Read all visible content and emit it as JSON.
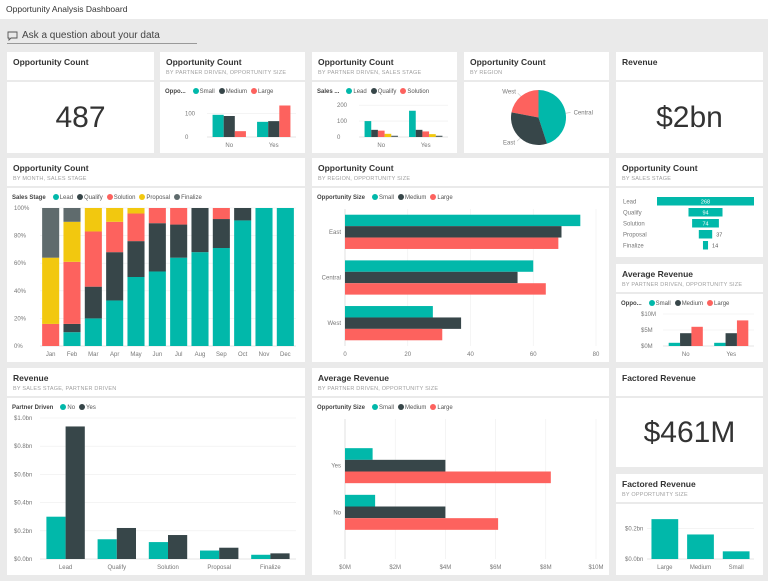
{
  "app_title": "Opportunity Analysis Dashboard",
  "qa": {
    "placeholder": "Ask a question about your data",
    "icon": "chat-bubble-icon"
  },
  "colors": {
    "small": "#01b8aa",
    "medium": "#374649",
    "large": "#fd625e",
    "lead": "#01b8aa",
    "qualify": "#374649",
    "solution": "#fd625e",
    "proposal": "#f2c80f",
    "finalize": "#5f6b6d"
  },
  "tiles": {
    "opp_count": {
      "title": "Opportunity Count",
      "value": "487"
    },
    "opp_partner_size": {
      "title": "Opportunity Count",
      "subtitle": "BY PARTNER DRIVEN, OPPORTUNITY SIZE",
      "chart": {
        "type": "bar",
        "legend_title": "Oppo...",
        "categories": [
          "No",
          "Yes"
        ],
        "series": [
          {
            "name": "Small",
            "color": "#01b8aa",
            "values": [
              95,
              65
            ]
          },
          {
            "name": "Medium",
            "color": "#374649",
            "values": [
              90,
              68
            ]
          },
          {
            "name": "Large",
            "color": "#fd625e",
            "values": [
              25,
              135
            ]
          }
        ],
        "ylim": [
          0,
          150
        ],
        "yticks": [
          0,
          100
        ],
        "ytick_labels": [
          "0",
          "100"
        ]
      }
    },
    "opp_partner_stage": {
      "title": "Opportunity Count",
      "subtitle": "BY PARTNER DRIVEN, SALES STAGE",
      "chart": {
        "type": "bar",
        "legend_title": "Sales ...",
        "legend_shown": 3,
        "categories": [
          "No",
          "Yes"
        ],
        "series": [
          {
            "name": "Lead",
            "color": "#01b8aa",
            "values": [
              100,
              165
            ]
          },
          {
            "name": "Qualify",
            "color": "#374649",
            "values": [
              45,
              45
            ]
          },
          {
            "name": "Solution",
            "color": "#fd625e",
            "values": [
              40,
              35
            ]
          },
          {
            "name": "Proposal",
            "color": "#f2c80f",
            "values": [
              20,
              18
            ]
          },
          {
            "name": "Finalize",
            "color": "#5f6b6d",
            "values": [
              8,
              8
            ]
          }
        ],
        "ylim": [
          0,
          220
        ],
        "yticks": [
          0,
          100,
          200
        ],
        "ytick_labels": [
          "0",
          "100",
          "200"
        ]
      }
    },
    "opp_region": {
      "title": "Opportunity Count",
      "subtitle": "BY REGION",
      "chart": {
        "type": "pie",
        "slices": [
          {
            "name": "West",
            "value": 22,
            "color": "#fd625e"
          },
          {
            "name": "Central",
            "value": 45,
            "color": "#01b8aa"
          },
          {
            "name": "East",
            "value": 33,
            "color": "#374649"
          }
        ]
      }
    },
    "revenue": {
      "title": "Revenue",
      "value": "$2bn"
    },
    "opp_month_stage": {
      "title": "Opportunity Count",
      "subtitle": "BY MONTH, SALES STAGE",
      "chart": {
        "type": "stacked-bar-100",
        "legend_title": "Sales Stage",
        "categories": [
          "Jan",
          "Feb",
          "Mar",
          "Apr",
          "May",
          "Jun",
          "Jul",
          "Aug",
          "Sep",
          "Oct",
          "Nov",
          "Dec"
        ],
        "series": [
          {
            "name": "Lead",
            "color": "#01b8aa",
            "values": [
              0,
              10,
              20,
              33,
              50,
              54,
              64,
              68,
              71,
              91,
              100,
              100
            ]
          },
          {
            "name": "Qualify",
            "color": "#374649",
            "values": [
              0,
              6,
              23,
              35,
              26,
              35,
              24,
              32,
              21,
              9,
              0,
              0
            ]
          },
          {
            "name": "Solution",
            "color": "#fd625e",
            "values": [
              16,
              45,
              40,
              22,
              20,
              11,
              12,
              0,
              8,
              0,
              0,
              0
            ]
          },
          {
            "name": "Proposal",
            "color": "#f2c80f",
            "values": [
              48,
              29,
              17,
              10,
              4,
              0,
              0,
              0,
              0,
              0,
              0,
              0
            ]
          },
          {
            "name": "Finalize",
            "color": "#5f6b6d",
            "values": [
              36,
              10,
              0,
              0,
              0,
              0,
              0,
              0,
              0,
              0,
              0,
              0
            ]
          }
        ],
        "ylim": [
          0,
          100
        ],
        "yticks": [
          0,
          20,
          40,
          60,
          80,
          100
        ],
        "ytick_labels": [
          "0%",
          "20%",
          "40%",
          "60%",
          "80%",
          "100%"
        ]
      }
    },
    "opp_region_size": {
      "title": "Opportunity Count",
      "subtitle": "BY REGION, OPPORTUNITY SIZE",
      "chart": {
        "type": "hbar",
        "legend_title": "Opportunity Size",
        "categories": [
          "East",
          "Central",
          "West"
        ],
        "series": [
          {
            "name": "Small",
            "color": "#01b8aa",
            "values": [
              75,
              60,
              28
            ]
          },
          {
            "name": "Medium",
            "color": "#374649",
            "values": [
              69,
              55,
              37
            ]
          },
          {
            "name": "Large",
            "color": "#fd625e",
            "values": [
              68,
              64,
              31
            ]
          }
        ],
        "xlim": [
          0,
          80
        ],
        "xticks": [
          0,
          20,
          40,
          60,
          80
        ],
        "xtick_labels": [
          "0",
          "20",
          "40",
          "60",
          "80"
        ]
      }
    },
    "opp_stage_funnel": {
      "title": "Opportunity Count",
      "subtitle": "BY SALES STAGE",
      "chart": {
        "type": "funnel",
        "color": "#01b8aa",
        "categories": [
          "Lead",
          "Qualify",
          "Solution",
          "Proposal",
          "Finalize"
        ],
        "values": [
          268,
          94,
          74,
          37,
          14
        ],
        "labels": [
          "268",
          "94",
          "74",
          "37",
          "14"
        ]
      }
    },
    "avg_rev_small": {
      "title": "Average Revenue",
      "subtitle": "BY PARTNER DRIVEN, OPPORTUNITY SIZE",
      "chart": {
        "type": "bar",
        "legend_title": "Oppo...",
        "categories": [
          "No",
          "Yes"
        ],
        "series": [
          {
            "name": "Small",
            "color": "#01b8aa",
            "values": [
              1,
              1
            ]
          },
          {
            "name": "Medium",
            "color": "#374649",
            "values": [
              4,
              4
            ]
          },
          {
            "name": "Large",
            "color": "#fd625e",
            "values": [
              6,
              8
            ]
          }
        ],
        "ylim": [
          0,
          10
        ],
        "yticks": [
          0,
          5,
          10
        ],
        "ytick_labels": [
          "$0M",
          "$5M",
          "$10M"
        ]
      }
    },
    "rev_stage_partner": {
      "title": "Revenue",
      "subtitle": "BY SALES STAGE, PARTNER DRIVEN",
      "chart": {
        "type": "bar",
        "legend_title": "Partner Driven",
        "categories": [
          "Lead",
          "Qualify",
          "Solution",
          "Proposal",
          "Finalize"
        ],
        "series": [
          {
            "name": "No",
            "color": "#01b8aa",
            "values": [
              0.3,
              0.14,
              0.12,
              0.06,
              0.03
            ]
          },
          {
            "name": "Yes",
            "color": "#374649",
            "values": [
              0.94,
              0.22,
              0.17,
              0.08,
              0.04
            ]
          }
        ],
        "ylim": [
          0,
          1.0
        ],
        "yticks": [
          0,
          0.2,
          0.4,
          0.6,
          0.8,
          1.0
        ],
        "ytick_labels": [
          "$0.0bn",
          "$0.2bn",
          "$0.4bn",
          "$0.6bn",
          "$0.8bn",
          "$1.0bn"
        ]
      }
    },
    "avg_rev_partner_size": {
      "title": "Average Revenue",
      "subtitle": "BY PARTNER DRIVEN, OPPORTUNITY SIZE",
      "chart": {
        "type": "hbar",
        "legend_title": "Opportunity Size",
        "categories": [
          "Yes",
          "No"
        ],
        "series": [
          {
            "name": "Small",
            "color": "#01b8aa",
            "values": [
              1.1,
              1.2
            ]
          },
          {
            "name": "Medium",
            "color": "#374649",
            "values": [
              4.0,
              4.0
            ]
          },
          {
            "name": "Large",
            "color": "#fd625e",
            "values": [
              8.2,
              6.1
            ]
          }
        ],
        "xlim": [
          0,
          10
        ],
        "xticks": [
          0,
          2,
          4,
          6,
          8,
          10
        ],
        "xtick_labels": [
          "$0M",
          "$2M",
          "$4M",
          "$6M",
          "$8M",
          "$10M"
        ]
      }
    },
    "factored_revenue": {
      "title": "Factored Revenue",
      "value": "$461M"
    },
    "factored_rev_size": {
      "title": "Factored Revenue",
      "subtitle": "BY OPPORTUNITY SIZE",
      "chart": {
        "type": "bar",
        "categories": [
          "Large",
          "Medium",
          "Small"
        ],
        "series": [
          {
            "color": "#01b8aa",
            "values": [
              0.26,
              0.16,
              0.05
            ]
          }
        ],
        "ylim": [
          0,
          0.3
        ],
        "yticks": [
          0,
          0.2
        ],
        "ytick_labels": [
          "$0.0bn",
          "$0.2bn"
        ]
      }
    }
  }
}
